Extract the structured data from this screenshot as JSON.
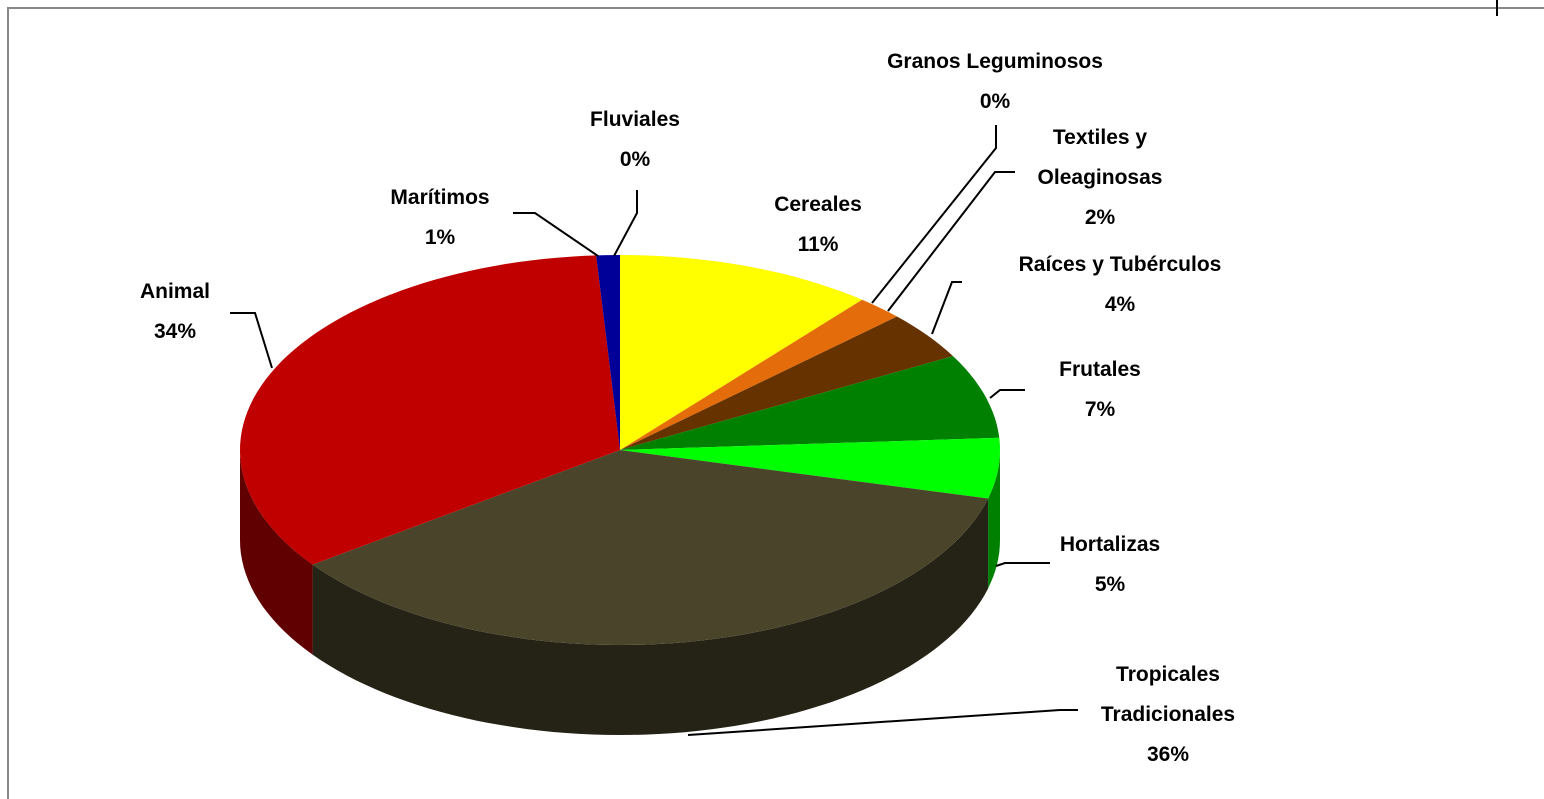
{
  "chart_data": {
    "type": "pie",
    "categories": [
      "Cereales",
      "Granos Leguminosos",
      "Textiles y Oleaginosas",
      "Raíces y Tubérculos",
      "Frutales",
      "Hortalizas",
      "Tropicales Tradicionales",
      "Animal",
      "Marítimos",
      "Fluviales"
    ],
    "values": [
      11,
      0,
      2,
      4,
      7,
      5,
      36,
      34,
      1,
      0
    ],
    "value_labels": [
      "11%",
      "0%",
      "2%",
      "4%",
      "7%",
      "5%",
      "36%",
      "34%",
      "1%",
      "0%"
    ],
    "colors": [
      "#ffff00",
      "#a0522d",
      "#e46c0a",
      "#663300",
      "#008000",
      "#00ff00",
      "#4a452a",
      "#c00000",
      "#000099",
      "#c0c0c0"
    ]
  }
}
